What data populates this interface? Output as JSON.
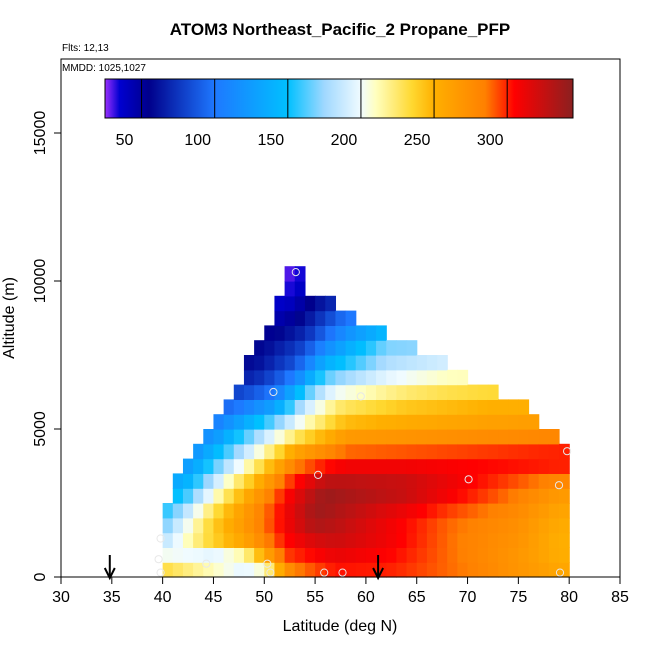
{
  "chart_data": {
    "type": "heatmap",
    "title": "ATOM3 Northeast_Pacific_2 Propane_PFP",
    "flights_label": "Flts: 12,13",
    "dates_label": "MMDD: 1025,1027",
    "xlabel": "Latitude (deg N)",
    "ylabel": "Altitude (m)",
    "xlim": [
      30,
      85
    ],
    "ylim": [
      0,
      17500
    ],
    "x_ticks": [
      "30",
      "35",
      "40",
      "45",
      "50",
      "55",
      "60",
      "65",
      "70",
      "75",
      "80",
      "85"
    ],
    "y_ticks": [
      "0",
      "5000",
      "10000",
      "15000"
    ],
    "colorbar": {
      "range": [
        25,
        345
      ],
      "tick_values": [
        50,
        100,
        150,
        200,
        250,
        300
      ],
      "tick_labels": [
        "50",
        "100",
        "150",
        "200",
        "250",
        "300"
      ],
      "stops": [
        {
          "v": 25,
          "c": "#9b30ff"
        },
        {
          "v": 35,
          "c": "#0000d0"
        },
        {
          "v": 55,
          "c": "#00008b"
        },
        {
          "v": 100,
          "c": "#1e78ff"
        },
        {
          "v": 150,
          "c": "#00c0ff"
        },
        {
          "v": 175,
          "c": "#a0d8ff"
        },
        {
          "v": 200,
          "c": "#f0fbff"
        },
        {
          "v": 210,
          "c": "#ffffc0"
        },
        {
          "v": 235,
          "c": "#ffd830"
        },
        {
          "v": 250,
          "c": "#ffb000"
        },
        {
          "v": 285,
          "c": "#ff8000"
        },
        {
          "v": 305,
          "c": "#ff0000"
        },
        {
          "v": 345,
          "c": "#8b2020"
        }
      ]
    },
    "column_tops": [
      {
        "lat": 40,
        "alt": 2100
      },
      {
        "lat": 44,
        "alt": 4600
      },
      {
        "lat": 47,
        "alt": 6200
      },
      {
        "lat": 50,
        "alt": 8000
      },
      {
        "lat": 53,
        "alt": 10500
      },
      {
        "lat": 54.5,
        "alt": 9500
      },
      {
        "lat": 58,
        "alt": 8800
      },
      {
        "lat": 62,
        "alt": 8000
      },
      {
        "lat": 66,
        "alt": 7300
      },
      {
        "lat": 69,
        "alt": 6800
      },
      {
        "lat": 72,
        "alt": 6200
      },
      {
        "lat": 75,
        "alt": 5700
      },
      {
        "lat": 77,
        "alt": 5100
      },
      {
        "lat": 79,
        "alt": 4500
      },
      {
        "lat": 79.5,
        "alt": 4300
      }
    ],
    "field_rows": [
      {
        "alt": 10000,
        "points": [
          [
            53,
            30
          ],
          [
            55,
            45
          ]
        ]
      },
      {
        "alt": 9000,
        "points": [
          [
            52,
            40
          ],
          [
            54,
            55
          ],
          [
            58,
            90
          ]
        ]
      },
      {
        "alt": 8000,
        "points": [
          [
            50,
            55
          ],
          [
            54,
            75
          ],
          [
            58,
            125
          ],
          [
            62,
            165
          ]
        ]
      },
      {
        "alt": 7000,
        "points": [
          [
            49,
            60
          ],
          [
            53,
            90
          ],
          [
            56,
            150
          ],
          [
            62,
            185
          ],
          [
            68,
            200
          ]
        ]
      },
      {
        "alt": 6000,
        "points": [
          [
            47,
            85
          ],
          [
            51,
            110
          ],
          [
            54,
            175
          ],
          [
            57,
            215
          ],
          [
            64,
            235
          ],
          [
            72,
            245
          ]
        ]
      },
      {
        "alt": 5000,
        "points": [
          [
            45,
            110
          ],
          [
            51,
            185
          ],
          [
            54,
            220
          ],
          [
            58,
            255
          ],
          [
            70,
            265
          ],
          [
            77,
            270
          ]
        ]
      },
      {
        "alt": 4000,
        "points": [
          [
            43,
            120
          ],
          [
            49,
            210
          ],
          [
            53,
            275
          ],
          [
            58,
            300
          ],
          [
            70,
            305
          ],
          [
            79.5,
            310
          ]
        ]
      },
      {
        "alt": 3000,
        "points": [
          [
            42,
            140
          ],
          [
            47,
            230
          ],
          [
            52,
            300
          ],
          [
            56,
            340
          ],
          [
            64,
            330
          ],
          [
            73,
            295
          ],
          [
            79,
            270
          ]
        ]
      },
      {
        "alt": 2000,
        "points": [
          [
            40.5,
            165
          ],
          [
            45,
            240
          ],
          [
            50,
            290
          ],
          [
            55,
            340
          ],
          [
            61,
            315
          ],
          [
            68,
            290
          ],
          [
            75,
            275
          ],
          [
            79,
            255
          ]
        ]
      },
      {
        "alt": 1000,
        "points": [
          [
            40,
            190
          ],
          [
            44,
            230
          ],
          [
            48,
            255
          ],
          [
            52,
            300
          ],
          [
            57,
            320
          ],
          [
            62,
            310
          ],
          [
            69,
            285
          ],
          [
            75,
            270
          ],
          [
            79,
            250
          ]
        ]
      },
      {
        "alt": 500,
        "points": [
          [
            40,
            215
          ],
          [
            45,
            155
          ],
          [
            48,
            175
          ],
          [
            52,
            290
          ],
          [
            57,
            305
          ],
          [
            63,
            300
          ],
          [
            70,
            285
          ],
          [
            79,
            255
          ]
        ]
      },
      {
        "alt": 0,
        "points": [
          [
            40,
            250
          ],
          [
            45,
            265
          ],
          [
            50,
            185
          ],
          [
            53,
            275
          ],
          [
            57,
            300
          ],
          [
            62,
            300
          ],
          [
            70,
            285
          ],
          [
            79,
            260
          ]
        ]
      }
    ],
    "samples": [
      {
        "lat": 53.1,
        "alt": 10300
      },
      {
        "lat": 50.9,
        "alt": 6250
      },
      {
        "lat": 59.5,
        "alt": 6100
      },
      {
        "lat": 79.8,
        "alt": 4250
      },
      {
        "lat": 55.3,
        "alt": 3450
      },
      {
        "lat": 70.1,
        "alt": 3300
      },
      {
        "lat": 79.0,
        "alt": 3100
      },
      {
        "lat": 39.8,
        "alt": 1300
      },
      {
        "lat": 39.6,
        "alt": 600
      },
      {
        "lat": 44.3,
        "alt": 450
      },
      {
        "lat": 50.3,
        "alt": 450
      },
      {
        "lat": 39.8,
        "alt": 150
      },
      {
        "lat": 50.6,
        "alt": 150
      },
      {
        "lat": 55.9,
        "alt": 150
      },
      {
        "lat": 57.7,
        "alt": 150
      },
      {
        "lat": 79.1,
        "alt": 150
      }
    ],
    "arrows": [
      34.8,
      61.2
    ]
  }
}
